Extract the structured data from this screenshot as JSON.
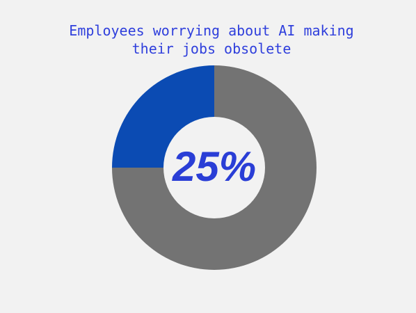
{
  "chart_data": {
    "type": "donut",
    "title": "Employees worrying about AI making their jobs obsolete",
    "values": [
      25,
      75
    ],
    "colors": [
      "#0b4bb3",
      "#737373"
    ],
    "center_label": "25%",
    "start": "top",
    "direction": "counterclockwise"
  }
}
